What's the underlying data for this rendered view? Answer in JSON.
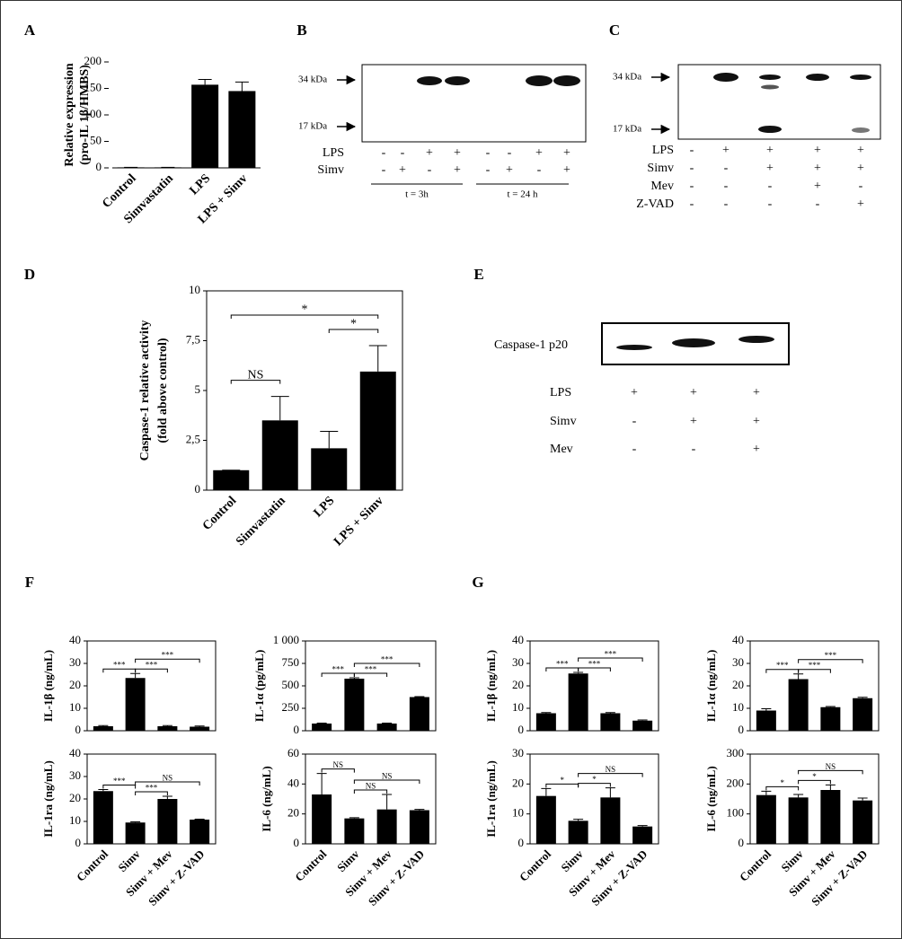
{
  "chart_data": [
    {
      "type": "bar",
      "panel": "A",
      "ylabel": [
        "Relative expression",
        "(pro-IL 1β/HMBS)"
      ],
      "categories": [
        "Control",
        "Simvastatin",
        "LPS",
        "LPS + Simv"
      ],
      "values": [
        1,
        1,
        157,
        145
      ],
      "errors": [
        0,
        0,
        10,
        17
      ],
      "color": "#000000",
      "ylim": [
        0,
        200
      ],
      "yticks": [
        0,
        50,
        100,
        150,
        200
      ],
      "frame": false
    },
    {
      "type": "bar",
      "panel": "D",
      "ylabel": [
        "Caspase-1 relative activity",
        "(fold above control)"
      ],
      "categories": [
        "Control",
        "Simvastatin",
        "LPS",
        "LPS + Simv"
      ],
      "values": [
        1,
        3.5,
        2.1,
        5.95
      ],
      "errors": [
        0,
        1.2,
        0.85,
        1.3
      ],
      "color": "#000000",
      "ylim": [
        0,
        10
      ],
      "yticks": [
        0,
        {
          "value": 2.5,
          "label": "2,5"
        },
        5,
        {
          "value": 7.5,
          "label": "7,5"
        },
        10
      ],
      "frame": true,
      "annotations": [
        {
          "text": "NS",
          "between": [
            0,
            1
          ]
        },
        {
          "text": "*",
          "between": [
            2,
            3
          ]
        },
        {
          "text": "*",
          "between": [
            0,
            3
          ]
        }
      ]
    },
    {
      "type": "bar",
      "panel": "F",
      "ylabel": [
        "IL-1β (ng/mL)"
      ],
      "values": [
        2,
        23.5,
        2,
        1.8
      ],
      "errors": [
        0.3,
        2,
        0.3,
        0.3
      ],
      "color": "#000000",
      "ylim": [
        0,
        40
      ],
      "yticks": [
        0,
        10,
        20,
        30,
        40
      ],
      "frame": true,
      "annotations": [
        {
          "text": "***",
          "between": [
            0,
            1
          ]
        },
        {
          "text": "***",
          "between": [
            1,
            2
          ]
        },
        {
          "text": "***",
          "between": [
            1,
            3
          ]
        }
      ]
    },
    {
      "type": "bar",
      "ylabel": [
        "IL-1α (pg/mL)"
      ],
      "values": [
        80,
        580,
        80,
        375
      ],
      "errors": [
        5,
        10,
        5,
        5
      ],
      "color": "#000000",
      "ylim": [
        0,
        1000
      ],
      "yticks": [
        0,
        250,
        500,
        750,
        {
          "value": 1000,
          "label": "1 000"
        }
      ],
      "frame": true,
      "annotations": [
        {
          "text": "***",
          "between": [
            0,
            1
          ]
        },
        {
          "text": "***",
          "between": [
            1,
            2
          ]
        },
        {
          "text": "***",
          "between": [
            1,
            3
          ]
        }
      ]
    },
    {
      "type": "bar",
      "ylabel": [
        "IL-1ra (ng/mL)"
      ],
      "categories": [
        "Control",
        "Simv",
        "Simv + Mev",
        "Simv + Z-VAD"
      ],
      "values": [
        23.5,
        9.5,
        20,
        10.8
      ],
      "errors": [
        0.7,
        0.3,
        1.2,
        0.2
      ],
      "color": "#000000",
      "ylim": [
        0,
        40
      ],
      "yticks": [
        0,
        10,
        20,
        30,
        40
      ],
      "frame": true,
      "annotations": [
        {
          "text": "***",
          "between": [
            0,
            1
          ]
        },
        {
          "text": "***",
          "between": [
            1,
            2
          ]
        },
        {
          "text": "NS",
          "between": [
            1,
            3
          ]
        }
      ]
    },
    {
      "type": "bar",
      "ylabel": [
        "IL-6 (ng/mL)"
      ],
      "categories": [
        "Control",
        "Simv",
        "Simv + Mev",
        "Simv + Z-VAD"
      ],
      "values": [
        33,
        17,
        23,
        22.5
      ],
      "errors": [
        14,
        0.5,
        10,
        0.5
      ],
      "color": "#000000",
      "ylim": [
        0,
        60
      ],
      "yticks": [
        0,
        20,
        40,
        60
      ],
      "frame": true,
      "annotations": [
        {
          "text": "NS",
          "between": [
            0,
            1
          ]
        },
        {
          "text": "NS",
          "between": [
            1,
            2
          ]
        },
        {
          "text": "NS",
          "between": [
            1,
            3
          ]
        }
      ]
    },
    {
      "type": "bar",
      "panel": "G",
      "ylabel": [
        "IL-1β (ng/mL)"
      ],
      "values": [
        7.8,
        25.5,
        7.8,
        4.5
      ],
      "errors": [
        0.3,
        0.5,
        0.3,
        0.3
      ],
      "color": "#000000",
      "ylim": [
        0,
        40
      ],
      "yticks": [
        0,
        10,
        20,
        30,
        40
      ],
      "frame": true,
      "annotations": [
        {
          "text": "***",
          "between": [
            0,
            1
          ]
        },
        {
          "text": "***",
          "between": [
            1,
            2
          ]
        },
        {
          "text": "***",
          "between": [
            1,
            3
          ]
        }
      ]
    },
    {
      "type": "bar",
      "ylabel": [
        "IL-1α (ng/mL)"
      ],
      "values": [
        9,
        23,
        10.5,
        14.5
      ],
      "errors": [
        0.8,
        2.3,
        0.3,
        0.4
      ],
      "color": "#000000",
      "ylim": [
        0,
        40
      ],
      "yticks": [
        0,
        10,
        20,
        30,
        40
      ],
      "frame": true,
      "annotations": [
        {
          "text": "***",
          "between": [
            0,
            1
          ]
        },
        {
          "text": "***",
          "between": [
            1,
            2
          ]
        },
        {
          "text": "***",
          "between": [
            1,
            3
          ]
        }
      ]
    },
    {
      "type": "bar",
      "ylabel": [
        "IL-1ra (ng/mL)"
      ],
      "categories": [
        "Control",
        "Simv",
        "Simv + Mev",
        "Simv + Z-VAD"
      ],
      "values": [
        16,
        7.7,
        15.5,
        5.8
      ],
      "errors": [
        2.5,
        0.5,
        3.2,
        0.3
      ],
      "color": "#000000",
      "ylim": [
        0,
        30
      ],
      "yticks": [
        0,
        10,
        20,
        30
      ],
      "frame": true,
      "annotations": [
        {
          "text": "*",
          "between": [
            0,
            1
          ]
        },
        {
          "text": "*",
          "between": [
            1,
            2
          ]
        },
        {
          "text": "NS",
          "between": [
            1,
            3
          ]
        }
      ]
    },
    {
      "type": "bar",
      "ylabel": [
        "IL-6 (ng/mL)"
      ],
      "categories": [
        "Control",
        "Simv",
        "Simv + Mev",
        "Simv + Z-VAD"
      ],
      "values": [
        163,
        155,
        180,
        145
      ],
      "errors": [
        13,
        10,
        17,
        8
      ],
      "color": "#000000",
      "ylim": [
        0,
        300
      ],
      "yticks": [
        0,
        100,
        200,
        300
      ],
      "frame": true,
      "annotations": [
        {
          "text": "*",
          "between": [
            0,
            1
          ]
        },
        {
          "text": "*",
          "between": [
            1,
            2
          ]
        },
        {
          "text": "NS",
          "between": [
            1,
            3
          ]
        }
      ]
    }
  ],
  "blots": [
    {
      "panel": "B",
      "markers": [
        "34 kDa",
        "17 kDa"
      ],
      "rows": [
        {
          "name": "LPS",
          "signs": [
            "-",
            "-",
            "+",
            "+",
            "-",
            "-",
            "+",
            "+"
          ]
        },
        {
          "name": "Simv",
          "signs": [
            "-",
            "+",
            "-",
            "+",
            "-",
            "+",
            "-",
            "+"
          ]
        }
      ],
      "groups": [
        "t = 3h",
        "t = 24 h"
      ]
    },
    {
      "panel": "C",
      "markers": [
        "34 kDa",
        "17 kDa"
      ],
      "rows": [
        {
          "name": "LPS",
          "signs": [
            "-",
            "+",
            "+",
            "+",
            "+"
          ]
        },
        {
          "name": "Simv",
          "signs": [
            "-",
            "-",
            "+",
            "+",
            "+"
          ]
        },
        {
          "name": "Mev",
          "signs": [
            "-",
            "-",
            "-",
            "+",
            "-"
          ]
        },
        {
          "name": "Z-VAD",
          "signs": [
            "-",
            "-",
            "-",
            "-",
            "+"
          ]
        }
      ]
    },
    {
      "panel": "E",
      "markers": [
        "Caspase-1 p20"
      ],
      "rows": [
        {
          "name": "LPS",
          "signs": [
            "+",
            "+",
            "+"
          ]
        },
        {
          "name": "Simv",
          "signs": [
            "-",
            "+",
            "+"
          ]
        },
        {
          "name": "Mev",
          "signs": [
            "-",
            "-",
            "+"
          ]
        }
      ]
    }
  ]
}
